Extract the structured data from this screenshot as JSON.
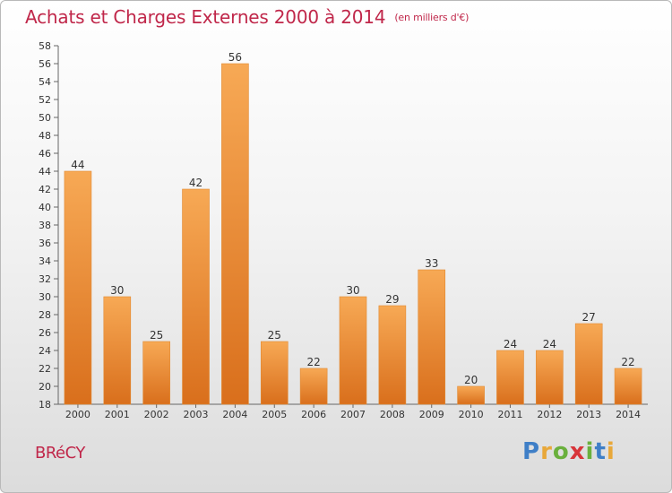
{
  "chart_data": {
    "type": "bar",
    "title": "Achats et Charges Externes 2000 à 2014",
    "subtitle": "(en milliers d'€)",
    "categories": [
      "2000",
      "2001",
      "2002",
      "2003",
      "2004",
      "2005",
      "2006",
      "2007",
      "2008",
      "2009",
      "2010",
      "2011",
      "2012",
      "2013",
      "2014"
    ],
    "values": [
      44,
      30,
      25,
      42,
      56,
      25,
      22,
      30,
      29,
      33,
      20,
      24,
      24,
      27,
      22
    ],
    "ylim": [
      18,
      58
    ],
    "ytick_step": 2,
    "grid": false,
    "bar_color_top": "#f7a955",
    "bar_color_bottom": "#d96f1c",
    "title_color": "#c0274a"
  },
  "footer": {
    "commune": "BRéCY",
    "logo_letters": [
      {
        "char": "P",
        "color": "#3f7fc7"
      },
      {
        "char": "r",
        "color": "#e8a83a"
      },
      {
        "char": "o",
        "color": "#6ab03d"
      },
      {
        "char": "x",
        "color": "#d8353a"
      },
      {
        "char": "i",
        "color": "#6ab03d"
      },
      {
        "char": "t",
        "color": "#3f7fc7"
      },
      {
        "char": "i",
        "color": "#e8a83a"
      }
    ]
  }
}
